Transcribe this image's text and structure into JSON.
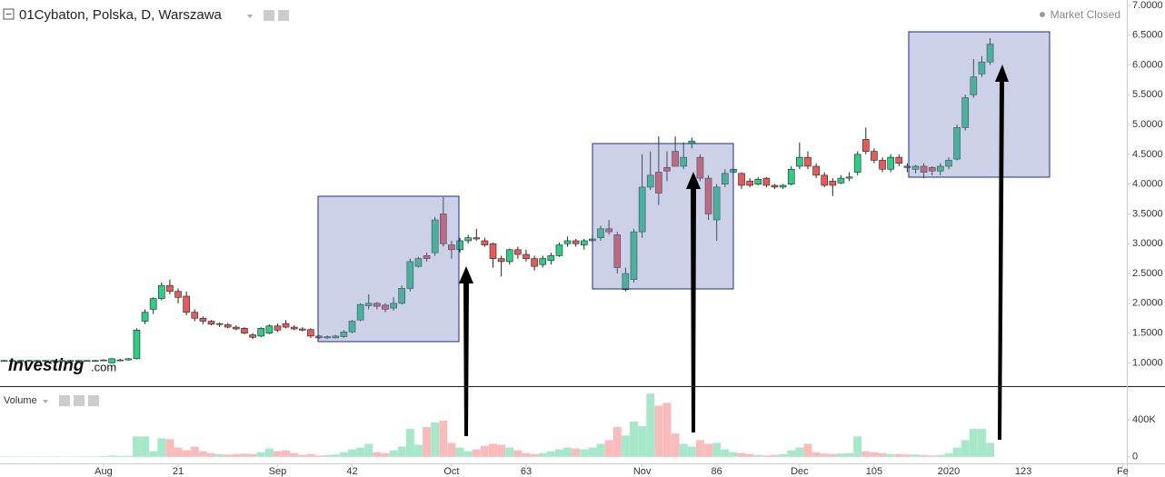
{
  "chart_data": [
    {
      "type": "candlestick",
      "title": "01Cybaton, Polska, D, Warszawa",
      "status": "Market Closed",
      "logo": "Investing",
      "logo_suffix": ".com",
      "up_color": "#2fcb87",
      "down_color": "#e8595b",
      "edge_color": "#1b2b22",
      "open": [
        1.04,
        1.04,
        1.04,
        1.04,
        1.04,
        1.04,
        1.04,
        1.04,
        1.04,
        1.04,
        1.04,
        1.04,
        1.04,
        1.0,
        1.05,
        1.05,
        1.07,
        1.7,
        1.9,
        2.08,
        2.3,
        2.2,
        2.12,
        1.85,
        1.75,
        1.7,
        1.65,
        1.64,
        1.6,
        1.58,
        1.47,
        1.45,
        1.5,
        1.62,
        1.66,
        1.6,
        1.57,
        1.56,
        1.45,
        1.42,
        1.42,
        1.44,
        1.52,
        1.72,
        1.96,
        2.0,
        1.97,
        1.92,
        2.0,
        2.25,
        2.62,
        2.8,
        2.85,
        3.5,
        2.98,
        2.9,
        3.05,
        3.1,
        3.05,
        3.0,
        2.75,
        2.7,
        2.9,
        2.82,
        2.75,
        2.65,
        2.72,
        2.8,
        3.0,
        3.05,
        2.98,
        3.05,
        3.1,
        3.25,
        3.15,
        2.23,
        2.4,
        3.2,
        3.95,
        4.2,
        4.28,
        4.55,
        4.3,
        4.68,
        4.45,
        4.1,
        3.4,
        4.0,
        4.2,
        4.18,
        4.05,
        4.0,
        4.1,
        3.98,
        3.95,
        4.0,
        4.3,
        4.45,
        4.3,
        4.15,
        4.05,
        4.02,
        4.1,
        4.2,
        4.75,
        4.55,
        4.4,
        4.25,
        4.45,
        4.3,
        4.25,
        4.3,
        4.28,
        4.22,
        4.3,
        4.42,
        4.95,
        5.5,
        5.85,
        6.05
      ],
      "high": [
        1.05,
        1.05,
        1.05,
        1.05,
        1.05,
        1.05,
        1.05,
        1.05,
        1.05,
        1.05,
        1.05,
        1.05,
        1.06,
        1.08,
        1.07,
        1.08,
        1.58,
        1.9,
        2.1,
        2.35,
        2.4,
        2.25,
        2.2,
        1.9,
        1.78,
        1.72,
        1.68,
        1.67,
        1.63,
        1.6,
        1.5,
        1.6,
        1.65,
        1.66,
        1.72,
        1.63,
        1.6,
        1.58,
        1.47,
        1.46,
        1.47,
        1.55,
        1.72,
        2.0,
        2.15,
        2.02,
        2.0,
        2.1,
        2.3,
        2.75,
        2.78,
        2.85,
        3.45,
        3.78,
        3.05,
        3.1,
        3.15,
        3.25,
        3.1,
        3.02,
        2.8,
        2.92,
        2.95,
        2.9,
        2.8,
        2.8,
        2.85,
        3.02,
        3.12,
        3.08,
        3.08,
        3.15,
        3.3,
        3.4,
        3.2,
        2.6,
        3.25,
        4.5,
        4.55,
        4.8,
        4.55,
        4.8,
        4.7,
        4.78,
        4.5,
        4.15,
        4.0,
        4.25,
        4.3,
        4.2,
        4.1,
        4.12,
        4.12,
        4.0,
        4.0,
        4.3,
        4.7,
        4.55,
        4.35,
        4.2,
        4.1,
        4.15,
        4.2,
        4.55,
        4.95,
        4.6,
        4.45,
        4.5,
        4.5,
        4.35,
        4.32,
        4.35,
        4.3,
        4.35,
        4.45,
        5.0,
        5.5,
        6.1,
        6.15,
        6.45
      ],
      "low": [
        1.03,
        1.03,
        1.03,
        1.03,
        1.03,
        1.03,
        1.03,
        1.03,
        1.03,
        1.03,
        1.03,
        1.02,
        1.03,
        0.99,
        1.03,
        1.04,
        1.06,
        1.65,
        1.82,
        2.05,
        2.15,
        2.0,
        1.8,
        1.7,
        1.65,
        1.63,
        1.6,
        1.58,
        1.55,
        1.48,
        1.4,
        1.43,
        1.48,
        1.52,
        1.58,
        1.55,
        1.53,
        1.42,
        1.4,
        1.4,
        1.41,
        1.42,
        1.5,
        1.7,
        1.9,
        1.9,
        1.85,
        1.88,
        1.98,
        2.2,
        2.6,
        2.7,
        2.8,
        2.95,
        2.75,
        2.85,
        3.0,
        3.05,
        2.95,
        2.6,
        2.45,
        2.65,
        2.75,
        2.7,
        2.55,
        2.6,
        2.65,
        2.78,
        2.95,
        2.95,
        2.9,
        3.0,
        3.05,
        3.15,
        2.5,
        2.2,
        2.35,
        3.1,
        3.9,
        3.65,
        4.05,
        4.3,
        4.25,
        4.6,
        4.05,
        3.4,
        3.05,
        3.95,
        4.1,
        3.92,
        3.95,
        3.98,
        3.95,
        3.92,
        3.92,
        3.98,
        4.25,
        4.25,
        4.1,
        3.95,
        3.8,
        4.0,
        4.05,
        4.15,
        4.5,
        4.35,
        4.2,
        4.2,
        4.3,
        4.2,
        4.18,
        4.1,
        4.15,
        4.15,
        4.25,
        4.4,
        4.9,
        5.45,
        5.8,
        6.0
      ],
      "close": [
        1.04,
        1.04,
        1.04,
        1.04,
        1.04,
        1.04,
        1.04,
        1.04,
        1.04,
        1.04,
        1.04,
        1.04,
        1.05,
        1.07,
        1.05,
        1.07,
        1.55,
        1.85,
        2.08,
        2.3,
        2.2,
        2.1,
        1.85,
        1.75,
        1.7,
        1.65,
        1.66,
        1.6,
        1.57,
        1.5,
        1.43,
        1.58,
        1.62,
        1.55,
        1.6,
        1.57,
        1.55,
        1.45,
        1.42,
        1.44,
        1.45,
        1.52,
        1.7,
        1.98,
        2.0,
        1.95,
        1.9,
        2.0,
        2.25,
        2.7,
        2.75,
        2.75,
        3.4,
        3.0,
        2.9,
        3.05,
        3.1,
        3.08,
        2.98,
        2.75,
        2.7,
        2.9,
        2.82,
        2.75,
        2.62,
        2.75,
        2.8,
        2.98,
        3.05,
        3.0,
        3.05,
        3.08,
        3.25,
        3.2,
        2.6,
        2.5,
        3.2,
        3.95,
        4.15,
        3.85,
        4.22,
        4.3,
        4.45,
        4.72,
        4.1,
        3.5,
        3.95,
        4.18,
        4.25,
        3.98,
        3.98,
        4.08,
        3.98,
        3.95,
        3.98,
        4.25,
        4.45,
        4.3,
        4.15,
        3.98,
        3.98,
        4.1,
        4.12,
        4.5,
        4.55,
        4.4,
        4.25,
        4.45,
        4.35,
        4.28,
        4.3,
        4.2,
        4.22,
        4.3,
        4.4,
        4.95,
        5.45,
        5.8,
        6.05,
        6.35
      ],
      "xlim": [
        -0.5,
        135.5
      ],
      "xticks": [
        {
          "value": 12,
          "label": "Aug"
        },
        21,
        {
          "value": 33,
          "label": "Sep"
        },
        42,
        {
          "value": 54,
          "label": "Oct"
        },
        63,
        {
          "value": 77,
          "label": "Nov"
        },
        86,
        {
          "value": 96,
          "label": "Dec"
        },
        105,
        {
          "value": 114,
          "label": "2020"
        },
        123,
        {
          "value": 135,
          "label": "Fe"
        }
      ],
      "ylim": [
        0.61,
        7.09
      ],
      "yticks": [
        {
          "value": 1,
          "label": "1.0000"
        },
        {
          "value": 1.5,
          "label": "1.5000"
        },
        {
          "value": 2,
          "label": "2.0000"
        },
        {
          "value": 2.5,
          "label": "2.5000"
        },
        {
          "value": 3,
          "label": "3.0000"
        },
        {
          "value": 3.5,
          "label": "3.5000"
        },
        {
          "value": 4,
          "label": "4.0000"
        },
        {
          "value": 4.5,
          "label": "4.5000"
        },
        {
          "value": 5,
          "label": "5.0000"
        },
        {
          "value": 5.5,
          "label": "5.5000"
        },
        {
          "value": 6,
          "label": "6.0000"
        },
        {
          "value": 6.5,
          "label": "6.5000"
        },
        {
          "value": 7,
          "label": "7.0000"
        }
      ],
      "grid": false
    },
    {
      "type": "bar",
      "title": "Volume",
      "up_color": "#a6e8c9",
      "down_color": "#f8bcbc",
      "values": [
        5000,
        5000,
        4000,
        4000,
        3000,
        4000,
        5000,
        3000,
        4000,
        5000,
        6000,
        5000,
        8000,
        15000,
        10000,
        12000,
        220000,
        220000,
        60000,
        200000,
        190000,
        100000,
        70000,
        110000,
        60000,
        40000,
        30000,
        25000,
        30000,
        35000,
        30000,
        50000,
        90000,
        60000,
        70000,
        40000,
        20000,
        30000,
        15000,
        20000,
        25000,
        50000,
        80000,
        100000,
        140000,
        50000,
        40000,
        70000,
        110000,
        300000,
        130000,
        320000,
        370000,
        390000,
        150000,
        100000,
        60000,
        80000,
        120000,
        140000,
        130000,
        100000,
        70000,
        40000,
        30000,
        40000,
        60000,
        80000,
        100000,
        90000,
        80000,
        100000,
        140000,
        180000,
        320000,
        230000,
        380000,
        330000,
        680000,
        550000,
        580000,
        250000,
        140000,
        110000,
        180000,
        140000,
        150000,
        80000,
        50000,
        40000,
        30000,
        20000,
        15000,
        20000,
        30000,
        70000,
        100000,
        140000,
        50000,
        35000,
        30000,
        35000,
        40000,
        220000,
        60000,
        50000,
        40000,
        30000,
        30000,
        25000,
        25000,
        20000,
        15000,
        20000,
        40000,
        100000,
        180000,
        300000,
        300000,
        150000
      ],
      "ylim": [
        -70000,
        750000
      ],
      "yticks": [
        0,
        {
          "value": 400000,
          "label": "400K"
        }
      ]
    }
  ]
}
